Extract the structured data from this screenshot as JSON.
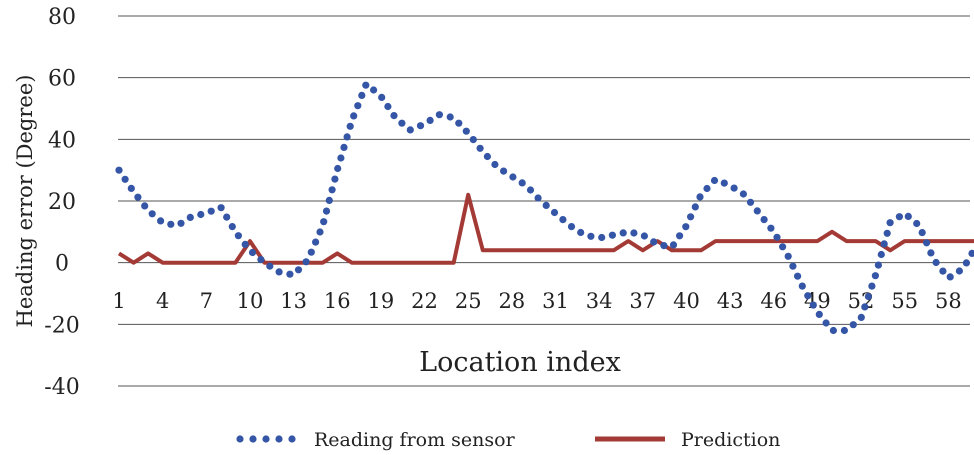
{
  "chart_data": {
    "type": "line",
    "title": "",
    "xlabel": "Location index",
    "ylabel": "Heading error (Degree)",
    "ylim": [
      -40,
      80
    ],
    "yticks": [
      -40,
      -20,
      0,
      20,
      40,
      60,
      80
    ],
    "xticks": [
      1,
      4,
      7,
      10,
      13,
      16,
      19,
      22,
      25,
      28,
      31,
      34,
      37,
      40,
      43,
      46,
      49,
      52,
      55,
      58
    ],
    "xlim": [
      1,
      60
    ],
    "grid": true,
    "legend_position": "bottom",
    "colors": {
      "sensor": "#3556a6",
      "prediction": "#a33a35",
      "grid": "#555555"
    },
    "x": [
      1,
      2,
      3,
      4,
      5,
      6,
      7,
      8,
      9,
      10,
      11,
      12,
      13,
      14,
      15,
      16,
      17,
      18,
      19,
      20,
      21,
      22,
      23,
      24,
      25,
      26,
      27,
      28,
      29,
      30,
      31,
      32,
      33,
      34,
      35,
      36,
      37,
      38,
      39,
      40,
      41,
      42,
      43,
      44,
      45,
      46,
      47,
      48,
      49,
      50,
      51,
      52,
      53,
      54,
      55,
      56,
      57,
      58,
      59,
      60
    ],
    "series": [
      {
        "name": "Reading from sensor",
        "style": "dotted",
        "values": [
          30,
          23,
          17,
          13,
          12,
          15,
          16,
          18,
          10,
          4,
          0,
          -3,
          -4,
          1,
          12,
          30,
          46,
          58,
          54,
          47,
          43,
          45,
          48,
          47,
          42,
          36,
          31,
          28,
          25,
          20,
          16,
          12,
          9,
          8,
          9,
          10,
          9,
          6,
          5,
          12,
          22,
          27,
          25,
          22,
          16,
          10,
          2,
          -8,
          -16,
          -22,
          -22,
          -18,
          -4,
          13,
          16,
          12,
          1,
          -5,
          -2,
          6
        ]
      },
      {
        "name": "Prediction",
        "style": "solid",
        "values": [
          3,
          0,
          3,
          0,
          0,
          0,
          0,
          0,
          0,
          7,
          0,
          0,
          0,
          0,
          0,
          3,
          0,
          0,
          0,
          0,
          0,
          0,
          0,
          0,
          22,
          4,
          4,
          4,
          4,
          4,
          4,
          4,
          4,
          4,
          4,
          7,
          4,
          7,
          4,
          4,
          4,
          7,
          7,
          7,
          7,
          7,
          7,
          7,
          7,
          10,
          7,
          7,
          7,
          4,
          7,
          7,
          7,
          7,
          7,
          7
        ]
      }
    ]
  }
}
